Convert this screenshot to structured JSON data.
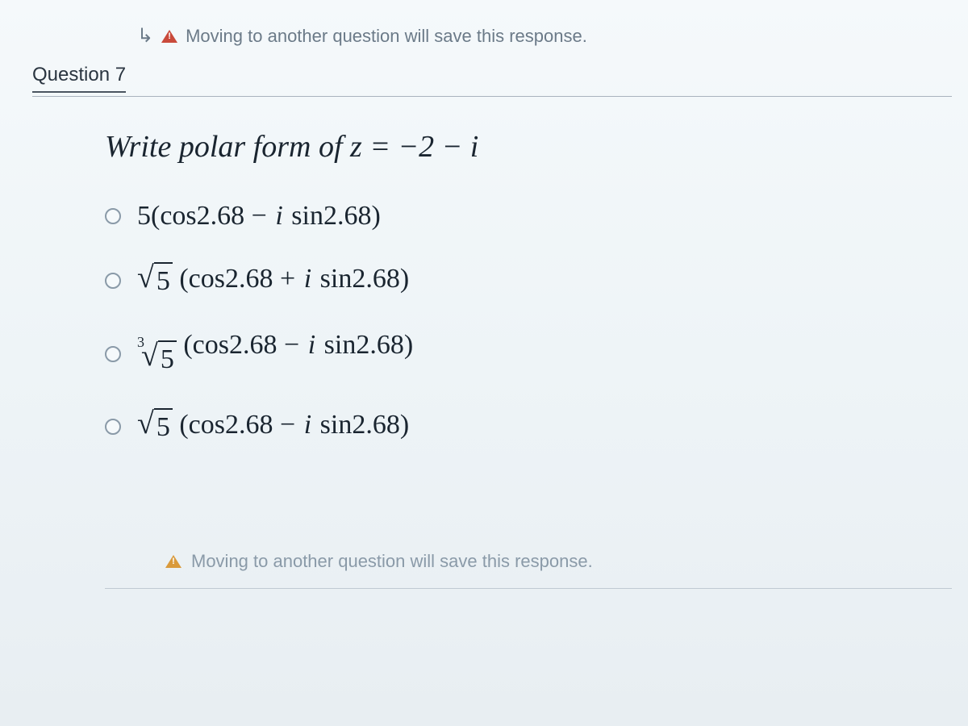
{
  "warnings": {
    "top_text": "Moving to another question will save this response.",
    "bottom_text": "Moving to another question will save this response."
  },
  "question": {
    "header": "Question 7",
    "prompt_prefix": "Write polar form of ",
    "prompt_equation": "z = −2 − i",
    "options": [
      {
        "type": "plain",
        "coefficient": "5",
        "trig": "(cos2.68 − i sin2.68)"
      },
      {
        "type": "sqrt",
        "index": "",
        "radicand": "5",
        "trig": "(cos2.68 + i sin2.68)"
      },
      {
        "type": "sqrt",
        "index": "3",
        "radicand": "5",
        "trig": "(cos2.68 − i sin2.68)"
      },
      {
        "type": "sqrt",
        "index": "",
        "radicand": "5",
        "trig": "(cos2.68 − i sin2.68)"
      }
    ]
  },
  "styling": {
    "background_gradient_top": "#f5f9fb",
    "background_gradient_bottom": "#e8eef2",
    "text_color": "#1a2530",
    "muted_text_color": "#6b7a88",
    "radio_border_color": "#8a9aa8",
    "warning_red": "#c94a3b",
    "warning_yellow": "#d99a3b",
    "divider_color": "#a8b3bd",
    "prompt_fontsize": 38,
    "option_fontsize": 34,
    "header_fontsize": 24,
    "warning_fontsize": 22
  }
}
